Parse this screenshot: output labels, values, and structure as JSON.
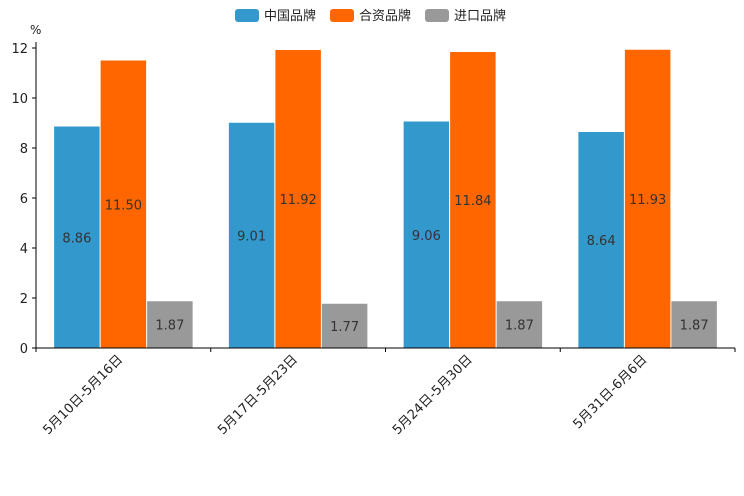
{
  "chart_data": {
    "type": "bar",
    "title": "",
    "xlabel": "",
    "ylabel": "%",
    "ylim": [
      0,
      12
    ],
    "yticks": [
      0,
      2,
      4,
      6,
      8,
      10,
      12
    ],
    "grid": false,
    "legend_position": "top-center",
    "categories": [
      "5月10日-5月16日",
      "5月17日-5月23日",
      "5月24日-5月30日",
      "5月31日-6月6日"
    ],
    "series": [
      {
        "name": "中国品牌",
        "color": "#3399CC",
        "values": [
          8.86,
          9.01,
          9.06,
          8.64
        ],
        "labels": [
          "8.86",
          "9.01",
          "9.06",
          "8.64"
        ]
      },
      {
        "name": "合资品牌",
        "color": "#FF6600",
        "values": [
          11.5,
          11.92,
          11.84,
          11.93
        ],
        "labels": [
          "11.50",
          "11.92",
          "11.84",
          "11.93"
        ]
      },
      {
        "name": "进口品牌",
        "color": "#999999",
        "values": [
          1.87,
          1.77,
          1.87,
          1.87
        ],
        "labels": [
          "1.87",
          "1.77",
          "1.87",
          "1.87"
        ]
      }
    ]
  }
}
